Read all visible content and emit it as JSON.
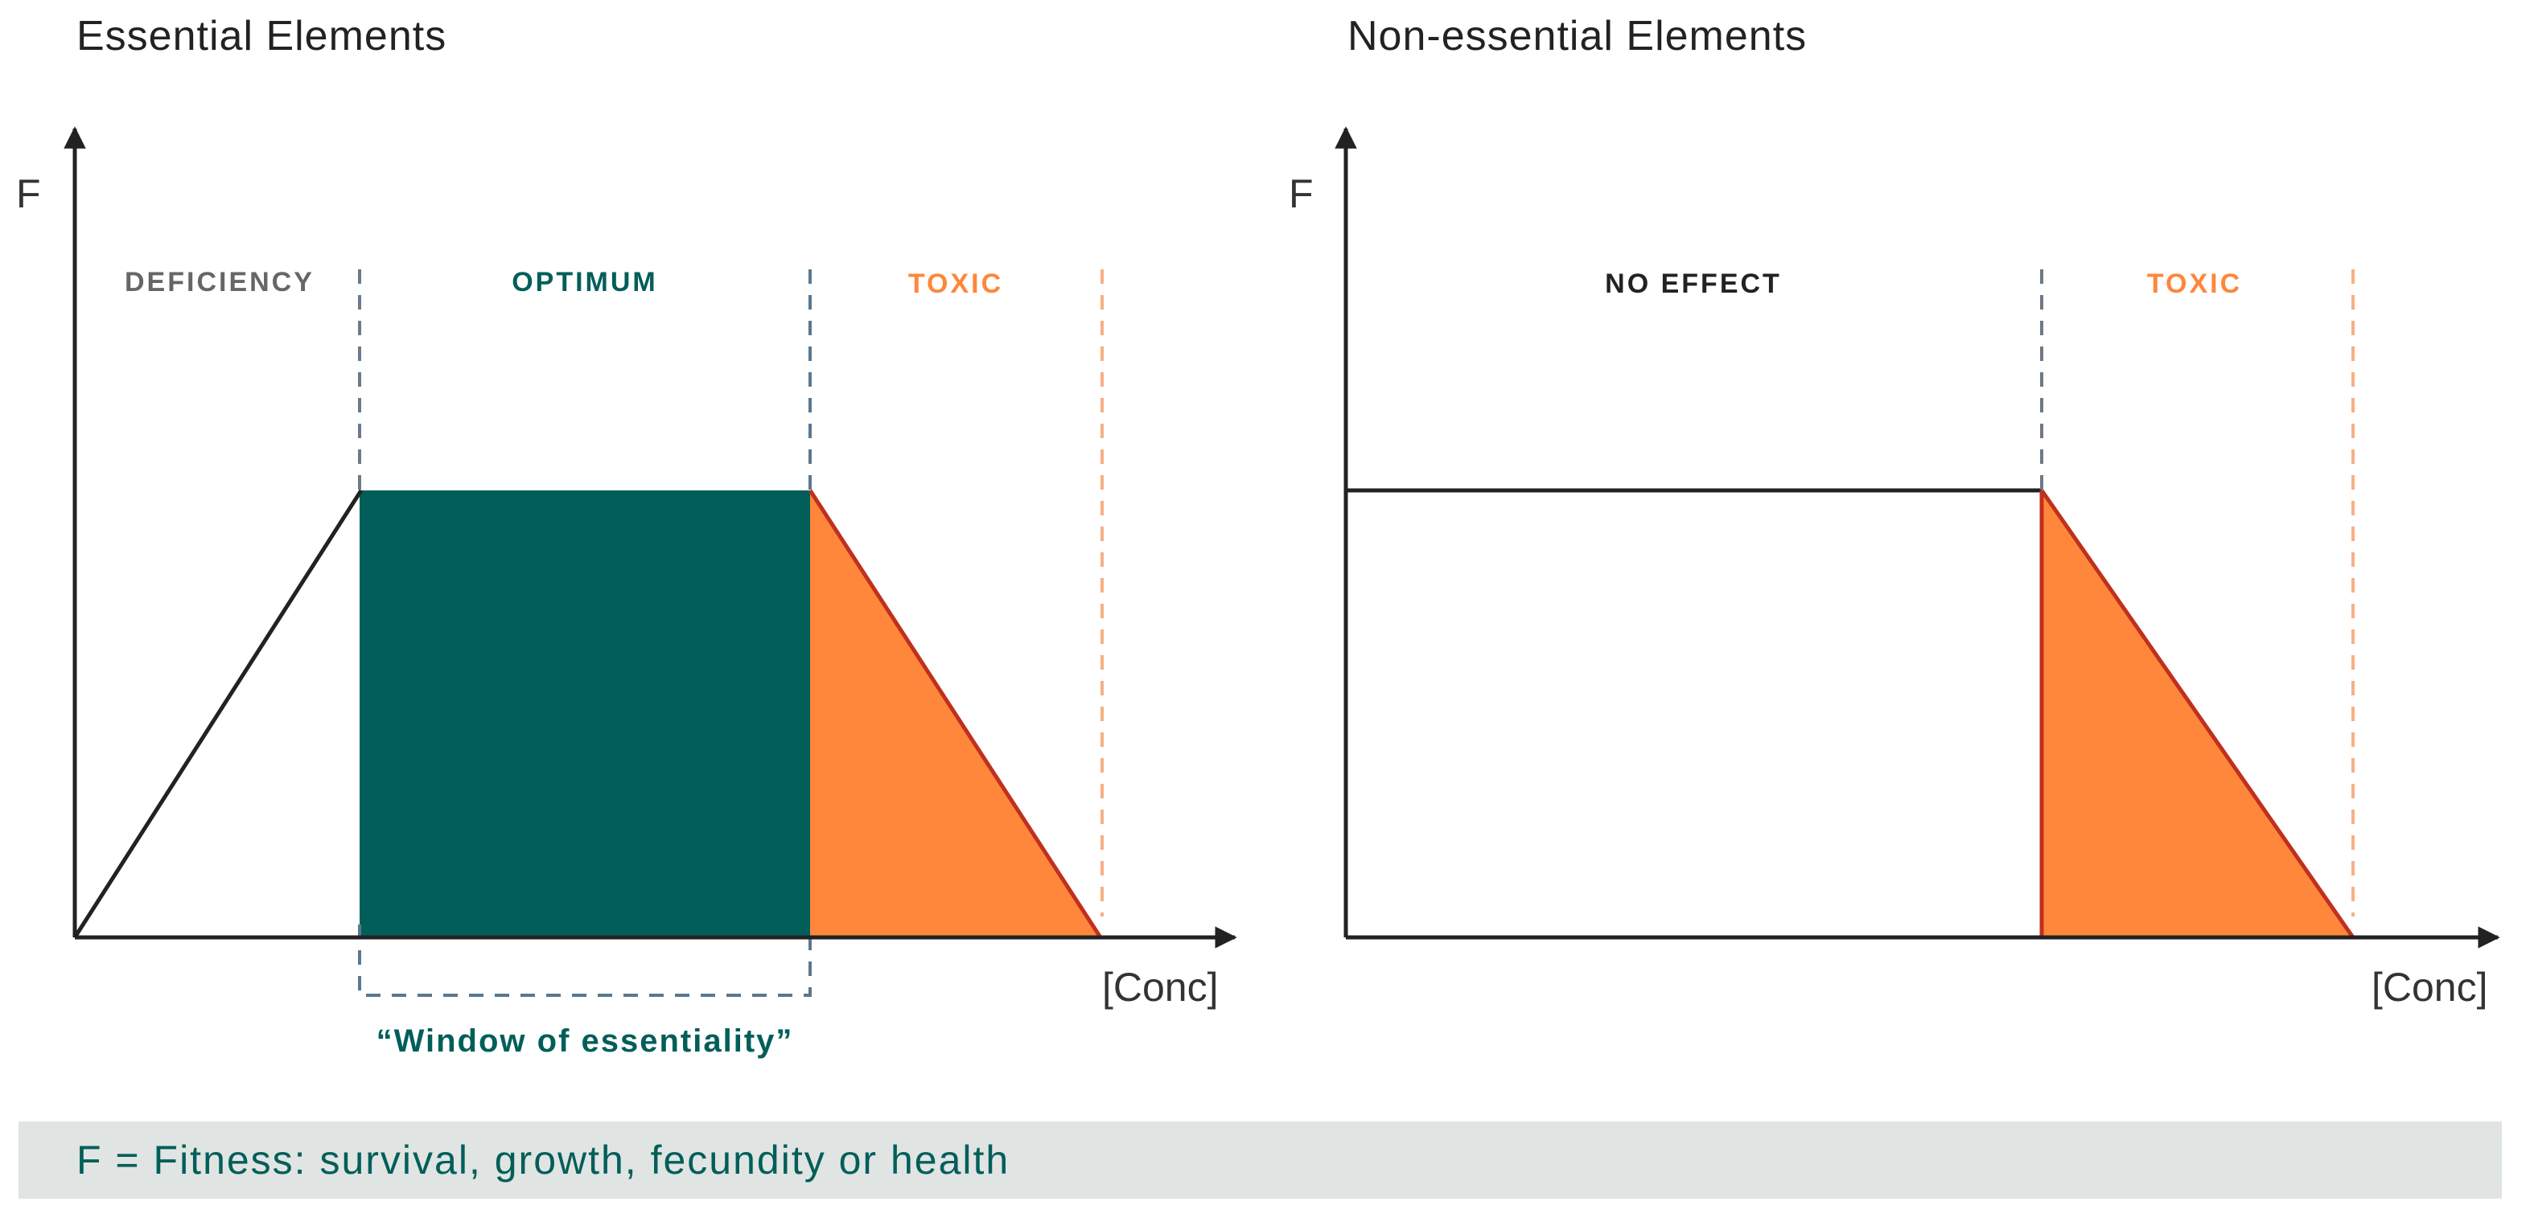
{
  "colors": {
    "teal": "#025e59",
    "orange": "#fe873b",
    "toxic_edge": "#c0301e",
    "axis": "#222222",
    "deficiency_label": "#666666",
    "no_effect_label": "#222222",
    "toxic_label": "#fe873b",
    "dashed_gray": "#6c7a89",
    "dashed_blue": "#5a7890",
    "dashed_orange": "#f6b084",
    "footer_bg": "#e0e4e3",
    "footer_text": "#025e59"
  },
  "left_panel": {
    "title": "Essential Elements",
    "y_axis_label": "F",
    "x_axis_label": "[Conc]",
    "zones": {
      "deficiency": "DEFICIENCY",
      "optimum": "OPTIMUM",
      "toxic": "TOXIC"
    },
    "window_label": "“Window of essentiality”"
  },
  "right_panel": {
    "title": "Non-essential Elements",
    "y_axis_label": "F",
    "x_axis_label": "[Conc]",
    "zones": {
      "no_effect": "NO EFFECT",
      "toxic": "TOXIC"
    }
  },
  "footer": {
    "text": "F = Fitness: survival, growth, fecundity or health"
  }
}
